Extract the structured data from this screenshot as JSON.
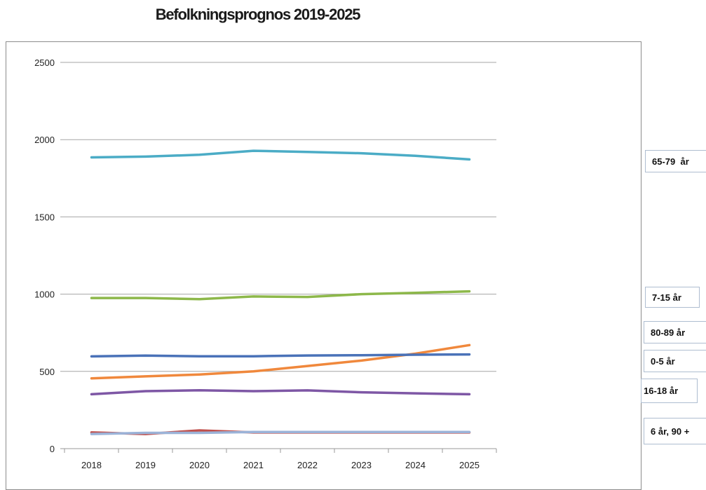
{
  "chart_data": {
    "type": "line",
    "title": "Befolkningsprognos 2019-2025",
    "xlabel": "",
    "ylabel": "",
    "ylim": [
      0,
      2500
    ],
    "yticks": [
      0,
      500,
      1000,
      1500,
      2000,
      2500
    ],
    "categories": [
      "2018",
      "2019",
      "2020",
      "2021",
      "2022",
      "2023",
      "2024",
      "2025"
    ],
    "grid": true,
    "series": [
      {
        "name": "65-79  år",
        "color": "#4bacc6",
        "values": [
          1885,
          1890,
          1902,
          1928,
          1920,
          1912,
          1895,
          1872
        ]
      },
      {
        "name": "7-15 år",
        "color": "#8db84a",
        "values": [
          975,
          975,
          968,
          985,
          982,
          1000,
          1008,
          1018
        ]
      },
      {
        "name": "80-89 år",
        "color": "#f0883c",
        "values": [
          455,
          468,
          480,
          500,
          535,
          570,
          615,
          670
        ]
      },
      {
        "name": "0-5 år",
        "color": "#4a72b8",
        "values": [
          597,
          602,
          598,
          598,
          603,
          605,
          608,
          610
        ]
      },
      {
        "name": "16-18 år",
        "color": "#7e57a5",
        "values": [
          352,
          372,
          378,
          372,
          377,
          365,
          358,
          352
        ]
      },
      {
        "name": "6 år",
        "color": "#c0504d",
        "values": [
          105,
          95,
          118,
          105,
          105,
          105,
          105,
          105
        ]
      },
      {
        "name": "90 +",
        "color": "#9bb3d8",
        "values": [
          95,
          102,
          102,
          108,
          108,
          108,
          108,
          108
        ]
      }
    ],
    "side_labels": [
      "65-79  år",
      "7-15 år",
      "80-89 år",
      "0-5 år",
      "16-18 år",
      "6 år, 90 +"
    ]
  }
}
